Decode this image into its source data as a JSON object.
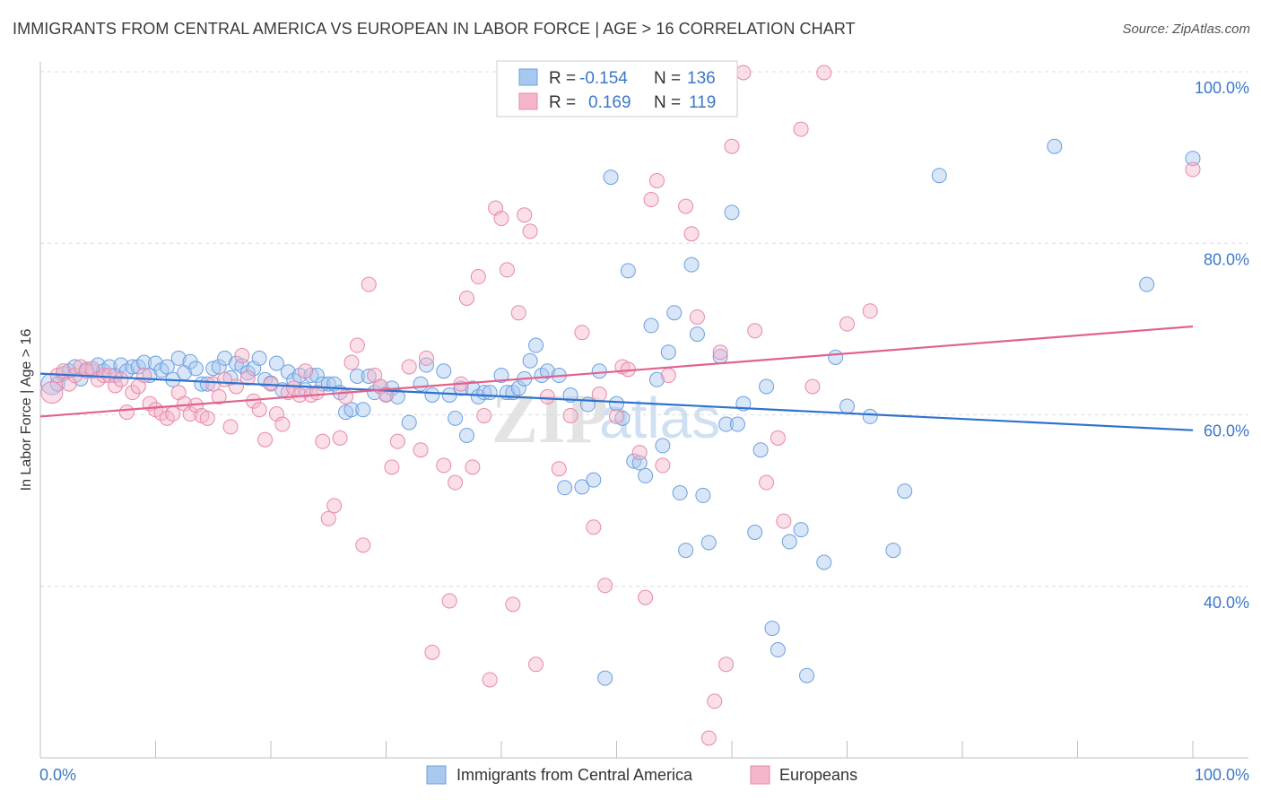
{
  "header": {
    "title": "IMMIGRANTS FROM CENTRAL AMERICA VS EUROPEAN IN LABOR FORCE | AGE > 16 CORRELATION CHART",
    "source": "Source: ZipAtlas.com"
  },
  "watermark": {
    "zip": "ZIP",
    "atlas": "atlas"
  },
  "legend": {
    "rows": [
      {
        "r_label": "R =",
        "r_value": "-0.154",
        "n_label": "N =",
        "n_value": "136",
        "color": "#a9c8f0"
      },
      {
        "r_label": "R =",
        "r_value": "0.169",
        "n_label": "N =",
        "n_value": "119",
        "color": "#f5b6cb"
      }
    ]
  },
  "chart_data": {
    "type": "scatter",
    "ylabel": "In Labor Force | Age > 16",
    "xlim": [
      0,
      100
    ],
    "ylim": [
      20,
      100
    ],
    "x_ticks": [
      "0.0%",
      "100.0%"
    ],
    "y_ticks": [
      {
        "value": 100,
        "label": "100.0%"
      },
      {
        "value": 80,
        "label": "80.0%"
      },
      {
        "value": 60,
        "label": "60.0%"
      },
      {
        "value": 40,
        "label": "40.0%"
      }
    ],
    "grid": true,
    "legend_position": "top-center",
    "series": [
      {
        "name": "Immigrants from Central America",
        "color": "#6aa0e0",
        "fill": "#a9c8f0",
        "trend": {
          "x": [
            0,
            100
          ],
          "y": [
            64.8,
            58.2
          ],
          "color": "#2f72cc"
        },
        "points": [
          [
            1,
            63.6
          ],
          [
            1.5,
            63.6
          ],
          [
            2,
            64.8
          ],
          [
            2.5,
            65.1
          ],
          [
            3,
            65.6
          ],
          [
            3.5,
            64.2
          ],
          [
            4,
            65.3
          ],
          [
            4.5,
            65.1
          ],
          [
            5,
            65.8
          ],
          [
            5.5,
            65.1
          ],
          [
            6,
            65.6
          ],
          [
            6.5,
            64.6
          ],
          [
            7,
            65.8
          ],
          [
            7.5,
            65.1
          ],
          [
            8,
            65.6
          ],
          [
            8.5,
            65.6
          ],
          [
            9,
            66.1
          ],
          [
            9.5,
            64.6
          ],
          [
            10,
            66
          ],
          [
            10.5,
            65.2
          ],
          [
            11,
            65.6
          ],
          [
            11.5,
            64.1
          ],
          [
            12,
            66.6
          ],
          [
            12.5,
            64.9
          ],
          [
            13,
            66.2
          ],
          [
            13.5,
            65.4
          ],
          [
            14,
            63.6
          ],
          [
            14.5,
            63.6
          ],
          [
            15,
            65.4
          ],
          [
            15.5,
            65.6
          ],
          [
            16,
            66.6
          ],
          [
            16.5,
            64.3
          ],
          [
            17,
            66
          ],
          [
            17.5,
            65.7
          ],
          [
            18,
            64.9
          ],
          [
            18.5,
            65.4
          ],
          [
            19,
            66.6
          ],
          [
            19.5,
            64.1
          ],
          [
            20,
            63.7
          ],
          [
            20.5,
            66
          ],
          [
            21,
            62.9
          ],
          [
            21.5,
            65
          ],
          [
            22,
            64
          ],
          [
            22.5,
            64.6
          ],
          [
            23,
            62.9
          ],
          [
            23.5,
            64.6
          ],
          [
            24,
            64.6
          ],
          [
            24.5,
            63.6
          ],
          [
            25,
            63.6
          ],
          [
            25.5,
            63.6
          ],
          [
            26,
            62.6
          ],
          [
            26.5,
            60.3
          ],
          [
            27,
            60.6
          ],
          [
            27.5,
            64.5
          ],
          [
            28,
            60.6
          ],
          [
            28.5,
            64.5
          ],
          [
            29,
            62.6
          ],
          [
            29.5,
            63.3
          ],
          [
            30,
            62.4
          ],
          [
            30.5,
            63.1
          ],
          [
            31,
            62.1
          ],
          [
            32,
            59.1
          ],
          [
            33,
            63.6
          ],
          [
            33.5,
            65.8
          ],
          [
            34,
            62.3
          ],
          [
            35,
            65.1
          ],
          [
            35.5,
            62.3
          ],
          [
            36,
            59.6
          ],
          [
            36.5,
            63.1
          ],
          [
            37,
            57.6
          ],
          [
            37.5,
            63.1
          ],
          [
            38,
            62.1
          ],
          [
            38.5,
            62.6
          ],
          [
            39,
            62.6
          ],
          [
            40,
            64.6
          ],
          [
            40.5,
            62.6
          ],
          [
            41,
            62.6
          ],
          [
            41.5,
            63.1
          ],
          [
            42,
            64.2
          ],
          [
            42.5,
            66.3
          ],
          [
            43,
            68.1
          ],
          [
            43.5,
            64.6
          ],
          [
            44,
            65.1
          ],
          [
            45,
            64.6
          ],
          [
            45.5,
            51.5
          ],
          [
            46,
            62.3
          ],
          [
            47,
            51.6
          ],
          [
            47.5,
            61.2
          ],
          [
            48,
            52.4
          ],
          [
            48.5,
            65.1
          ],
          [
            49,
            29.3
          ],
          [
            49.5,
            87.7
          ],
          [
            50,
            61.3
          ],
          [
            50.5,
            59.6
          ],
          [
            51,
            76.8
          ],
          [
            51.5,
            54.6
          ],
          [
            52,
            54.4
          ],
          [
            52.5,
            52.9
          ],
          [
            53,
            70.4
          ],
          [
            53.5,
            64.1
          ],
          [
            54,
            56.4
          ],
          [
            54.5,
            67.3
          ],
          [
            55,
            71.9
          ],
          [
            55.5,
            50.9
          ],
          [
            56,
            44.2
          ],
          [
            56.5,
            77.5
          ],
          [
            57,
            69.4
          ],
          [
            57.5,
            50.6
          ],
          [
            58,
            45.1
          ],
          [
            59,
            66.8
          ],
          [
            59.5,
            58.9
          ],
          [
            60,
            83.6
          ],
          [
            60.5,
            58.9
          ],
          [
            61,
            61.3
          ],
          [
            62,
            46.3
          ],
          [
            62.5,
            55.9
          ],
          [
            63,
            63.3
          ],
          [
            63.5,
            35.1
          ],
          [
            64,
            32.6
          ],
          [
            65,
            45.2
          ],
          [
            66,
            46.6
          ],
          [
            66.5,
            29.6
          ],
          [
            68,
            42.8
          ],
          [
            69,
            66.7
          ],
          [
            70,
            61
          ],
          [
            72,
            59.8
          ],
          [
            74,
            44.2
          ],
          [
            75,
            51.1
          ],
          [
            78,
            87.9
          ],
          [
            88,
            91.3
          ],
          [
            96,
            75.2
          ],
          [
            100,
            89.9
          ]
        ]
      },
      {
        "name": "Europeans",
        "color": "#e889a8",
        "fill": "#f5b6cb",
        "trend": {
          "x": [
            0,
            100
          ],
          "y": [
            59.8,
            70.3
          ],
          "color": "#e0628e"
        },
        "points": [
          [
            1,
            62.6
          ],
          [
            1.5,
            64.6
          ],
          [
            2,
            65.1
          ],
          [
            2.5,
            63.6
          ],
          [
            3,
            64.6
          ],
          [
            3.5,
            65.6
          ],
          [
            4,
            65.1
          ],
          [
            4.5,
            65.4
          ],
          [
            5,
            64.1
          ],
          [
            5.5,
            64.6
          ],
          [
            6,
            64.6
          ],
          [
            6.5,
            63.4
          ],
          [
            7,
            64.1
          ],
          [
            7.5,
            60.3
          ],
          [
            8,
            62.6
          ],
          [
            8.5,
            63.3
          ],
          [
            9,
            64.6
          ],
          [
            9.5,
            61.3
          ],
          [
            10,
            60.6
          ],
          [
            10.5,
            60.2
          ],
          [
            11,
            59.6
          ],
          [
            11.5,
            60.1
          ],
          [
            12,
            62.6
          ],
          [
            12.5,
            61.3
          ],
          [
            13,
            60.1
          ],
          [
            13.5,
            61.1
          ],
          [
            14,
            59.9
          ],
          [
            14.5,
            59.6
          ],
          [
            15,
            63.6
          ],
          [
            15.5,
            62.1
          ],
          [
            16,
            64.1
          ],
          [
            16.5,
            58.6
          ],
          [
            17,
            63.3
          ],
          [
            17.5,
            66.9
          ],
          [
            18,
            64.3
          ],
          [
            18.5,
            61.6
          ],
          [
            19,
            60.6
          ],
          [
            19.5,
            57.1
          ],
          [
            20,
            63.6
          ],
          [
            20.5,
            60.1
          ],
          [
            21,
            58.9
          ],
          [
            21.5,
            62.6
          ],
          [
            22,
            63.1
          ],
          [
            22.5,
            62.3
          ],
          [
            23,
            65.1
          ],
          [
            23.5,
            62.3
          ],
          [
            24,
            62.6
          ],
          [
            24.5,
            56.9
          ],
          [
            25,
            47.9
          ],
          [
            25.5,
            49.4
          ],
          [
            26,
            57.3
          ],
          [
            26.5,
            62.1
          ],
          [
            27,
            66.1
          ],
          [
            27.5,
            68.1
          ],
          [
            28,
            44.8
          ],
          [
            28.5,
            75.2
          ],
          [
            29,
            64.6
          ],
          [
            29.5,
            63.3
          ],
          [
            30,
            62.3
          ],
          [
            30.5,
            53.9
          ],
          [
            31,
            56.9
          ],
          [
            32,
            65.6
          ],
          [
            33,
            55.9
          ],
          [
            33.5,
            66.6
          ],
          [
            34,
            32.3
          ],
          [
            35,
            54.1
          ],
          [
            35.5,
            38.3
          ],
          [
            36,
            52.1
          ],
          [
            36.5,
            63.6
          ],
          [
            37,
            73.6
          ],
          [
            37.5,
            53.9
          ],
          [
            38,
            76.1
          ],
          [
            38.5,
            59.9
          ],
          [
            39,
            29.1
          ],
          [
            39.5,
            84.1
          ],
          [
            40,
            82.9
          ],
          [
            40.5,
            76.9
          ],
          [
            41,
            37.9
          ],
          [
            41.5,
            71.9
          ],
          [
            42,
            83.3
          ],
          [
            42.5,
            81.4
          ],
          [
            43,
            30.9
          ],
          [
            44,
            62.1
          ],
          [
            45,
            53.7
          ],
          [
            46,
            59.9
          ],
          [
            47,
            69.6
          ],
          [
            48,
            46.9
          ],
          [
            48.5,
            62.4
          ],
          [
            49,
            40.1
          ],
          [
            50,
            59.8
          ],
          [
            50.5,
            65.6
          ],
          [
            51,
            65.3
          ],
          [
            52,
            55.6
          ],
          [
            52.5,
            38.7
          ],
          [
            53,
            85.1
          ],
          [
            53.5,
            87.3
          ],
          [
            54,
            54.1
          ],
          [
            54.5,
            64.6
          ],
          [
            56,
            84.3
          ],
          [
            56.5,
            81.1
          ],
          [
            57,
            71.4
          ],
          [
            58,
            22.3
          ],
          [
            58.5,
            26.6
          ],
          [
            59,
            67.3
          ],
          [
            59.5,
            30.9
          ],
          [
            60,
            91.3
          ],
          [
            61,
            99.9
          ],
          [
            62,
            69.8
          ],
          [
            63,
            52.1
          ],
          [
            64,
            57.3
          ],
          [
            64.5,
            47.6
          ],
          [
            66,
            93.3
          ],
          [
            67,
            63.3
          ],
          [
            68,
            99.9
          ],
          [
            70,
            70.6
          ],
          [
            72,
            72.1
          ],
          [
            100,
            88.6
          ]
        ]
      }
    ]
  },
  "bottom_legend": [
    {
      "label": "Immigrants from Central America",
      "color": "#a9c8f0"
    },
    {
      "label": "Europeans",
      "color": "#f5b6cb"
    }
  ]
}
